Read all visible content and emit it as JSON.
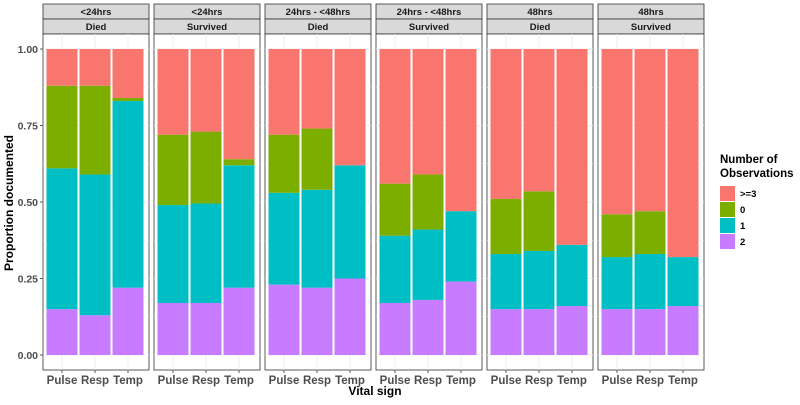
{
  "chart_data": {
    "type": "bar",
    "stacked": true,
    "xlabel": "Vital sign",
    "ylabel": "Proportion documented",
    "ylim": [
      0,
      1
    ],
    "y_ticks": [
      "0.00",
      "0.25",
      "0.50",
      "0.75",
      "1.00"
    ],
    "categories": [
      "Pulse",
      "Resp",
      "Temp"
    ],
    "legend": {
      "title_lines": [
        "Number of",
        "Observations"
      ],
      "position": "right",
      "items": [
        {
          "label": ">=3",
          "color": "#F8766D"
        },
        {
          "label": "0",
          "color": "#7CAE00"
        },
        {
          "label": "1",
          "color": "#00BFC4"
        },
        {
          "label": "2",
          "color": "#C77CFF"
        }
      ]
    },
    "stack_order_bottom_to_top": [
      "2",
      "1",
      "0",
      ">=3"
    ],
    "panels": [
      {
        "time": "<24hrs",
        "outcome": "Died",
        "bars": [
          {
            "2": 0.15,
            "1": 0.46,
            "0": 0.27,
            ">=3": 0.12
          },
          {
            "2": 0.13,
            "1": 0.46,
            "0": 0.29,
            ">=3": 0.12
          },
          {
            "2": 0.22,
            "1": 0.61,
            "0": 0.01,
            ">=3": 0.16
          }
        ]
      },
      {
        "time": "<24hrs",
        "outcome": "Survived",
        "bars": [
          {
            "2": 0.17,
            "1": 0.32,
            "0": 0.23,
            ">=3": 0.28
          },
          {
            "2": 0.17,
            "1": 0.325,
            "0": 0.235,
            ">=3": 0.27
          },
          {
            "2": 0.22,
            "1": 0.4,
            "0": 0.02,
            ">=3": 0.36
          }
        ]
      },
      {
        "time": "24hrs - <48hrs",
        "outcome": "Died",
        "bars": [
          {
            "2": 0.23,
            "1": 0.3,
            "0": 0.19,
            ">=3": 0.28
          },
          {
            "2": 0.22,
            "1": 0.32,
            "0": 0.2,
            ">=3": 0.26
          },
          {
            "2": 0.25,
            "1": 0.37,
            "0": 0.0,
            ">=3": 0.38
          }
        ]
      },
      {
        "time": "24hrs - <48hrs",
        "outcome": "Survived",
        "bars": [
          {
            "2": 0.17,
            "1": 0.22,
            "0": 0.17,
            ">=3": 0.44
          },
          {
            "2": 0.18,
            "1": 0.23,
            "0": 0.18,
            ">=3": 0.41
          },
          {
            "2": 0.24,
            "1": 0.23,
            "0": 0.0,
            ">=3": 0.53
          }
        ]
      },
      {
        "time": "48hrs",
        "outcome": "Died",
        "bars": [
          {
            "2": 0.15,
            "1": 0.18,
            "0": 0.18,
            ">=3": 0.49
          },
          {
            "2": 0.15,
            "1": 0.19,
            "0": 0.195,
            ">=3": 0.465
          },
          {
            "2": 0.16,
            "1": 0.2,
            "0": 0.0,
            ">=3": 0.64
          }
        ]
      },
      {
        "time": "48hrs",
        "outcome": "Survived",
        "bars": [
          {
            "2": 0.15,
            "1": 0.17,
            "0": 0.14,
            ">=3": 0.54
          },
          {
            "2": 0.15,
            "1": 0.18,
            "0": 0.14,
            ">=3": 0.53
          },
          {
            "2": 0.16,
            "1": 0.16,
            "0": 0.0,
            ">=3": 0.68
          }
        ]
      }
    ]
  }
}
